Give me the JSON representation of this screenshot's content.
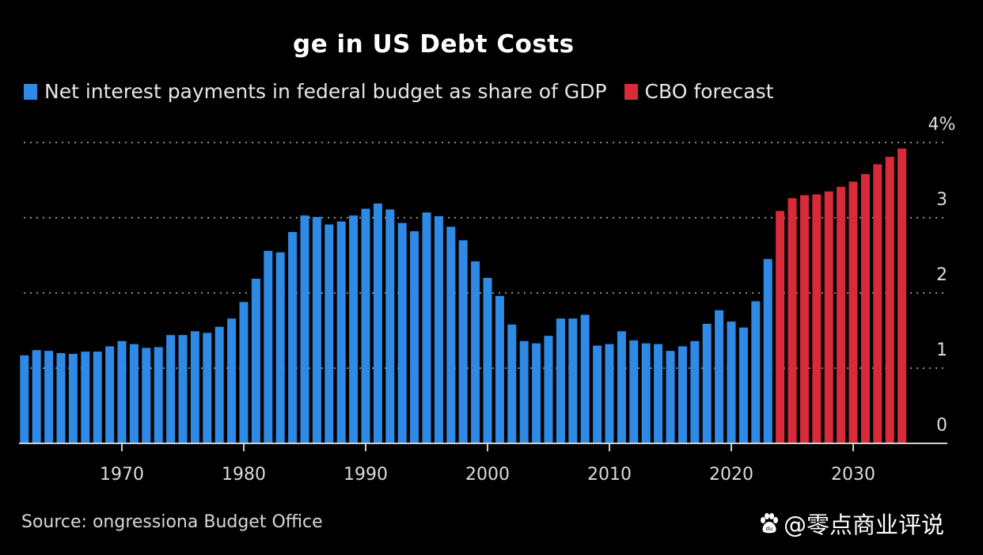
{
  "title": "ge in US Debt Costs",
  "legend": [
    {
      "label": "Net interest payments in federal budget as share of GDP",
      "color": "#2f8ae6"
    },
    {
      "label": "CBO forecast",
      "color": "#d92a3a"
    }
  ],
  "source": "Source: ongressiona Budget Office",
  "watermark": "@零点商业评说",
  "chart_data": {
    "type": "bar",
    "title": "ge in US Debt Costs",
    "xlabel": "",
    "ylabel": "",
    "ylim": [
      0,
      4
    ],
    "yticks": [
      "0",
      "1",
      "2",
      "3",
      "4%"
    ],
    "xticks": [
      "1970",
      "1980",
      "1990",
      "2000",
      "2010",
      "2020",
      "2030"
    ],
    "grid": true,
    "legend_position": "top-left",
    "series": [
      {
        "name": "Net interest payments in federal budget as share of GDP",
        "color": "#2f8ae6",
        "x": [
          1962,
          1963,
          1964,
          1965,
          1966,
          1967,
          1968,
          1969,
          1970,
          1971,
          1972,
          1973,
          1974,
          1975,
          1976,
          1977,
          1978,
          1979,
          1980,
          1981,
          1982,
          1983,
          1984,
          1985,
          1986,
          1987,
          1988,
          1989,
          1990,
          1991,
          1992,
          1993,
          1994,
          1995,
          1996,
          1997,
          1998,
          1999,
          2000,
          2001,
          2002,
          2003,
          2004,
          2005,
          2006,
          2007,
          2008,
          2009,
          2010,
          2011,
          2012,
          2013,
          2014,
          2015,
          2016,
          2017,
          2018,
          2019,
          2020,
          2021,
          2022,
          2023
        ],
        "values": [
          1.17,
          1.24,
          1.23,
          1.2,
          1.19,
          1.22,
          1.22,
          1.29,
          1.36,
          1.32,
          1.27,
          1.28,
          1.44,
          1.44,
          1.49,
          1.47,
          1.55,
          1.66,
          1.88,
          2.19,
          2.56,
          2.54,
          2.81,
          3.03,
          3.01,
          2.91,
          2.95,
          3.03,
          3.12,
          3.19,
          3.11,
          2.93,
          2.82,
          3.07,
          3.02,
          2.88,
          2.7,
          2.42,
          2.2,
          1.96,
          1.58,
          1.36,
          1.33,
          1.43,
          1.66,
          1.66,
          1.71,
          1.3,
          1.32,
          1.49,
          1.37,
          1.33,
          1.32,
          1.23,
          1.29,
          1.36,
          1.59,
          1.77,
          1.62,
          1.54,
          1.89,
          2.45
        ]
      },
      {
        "name": "CBO forecast",
        "color": "#d92a3a",
        "x": [
          2024,
          2025,
          2026,
          2027,
          2028,
          2029,
          2030,
          2031,
          2032,
          2033,
          2034
        ],
        "values": [
          3.09,
          3.26,
          3.3,
          3.31,
          3.35,
          3.41,
          3.48,
          3.58,
          3.71,
          3.81,
          3.92
        ]
      }
    ]
  }
}
